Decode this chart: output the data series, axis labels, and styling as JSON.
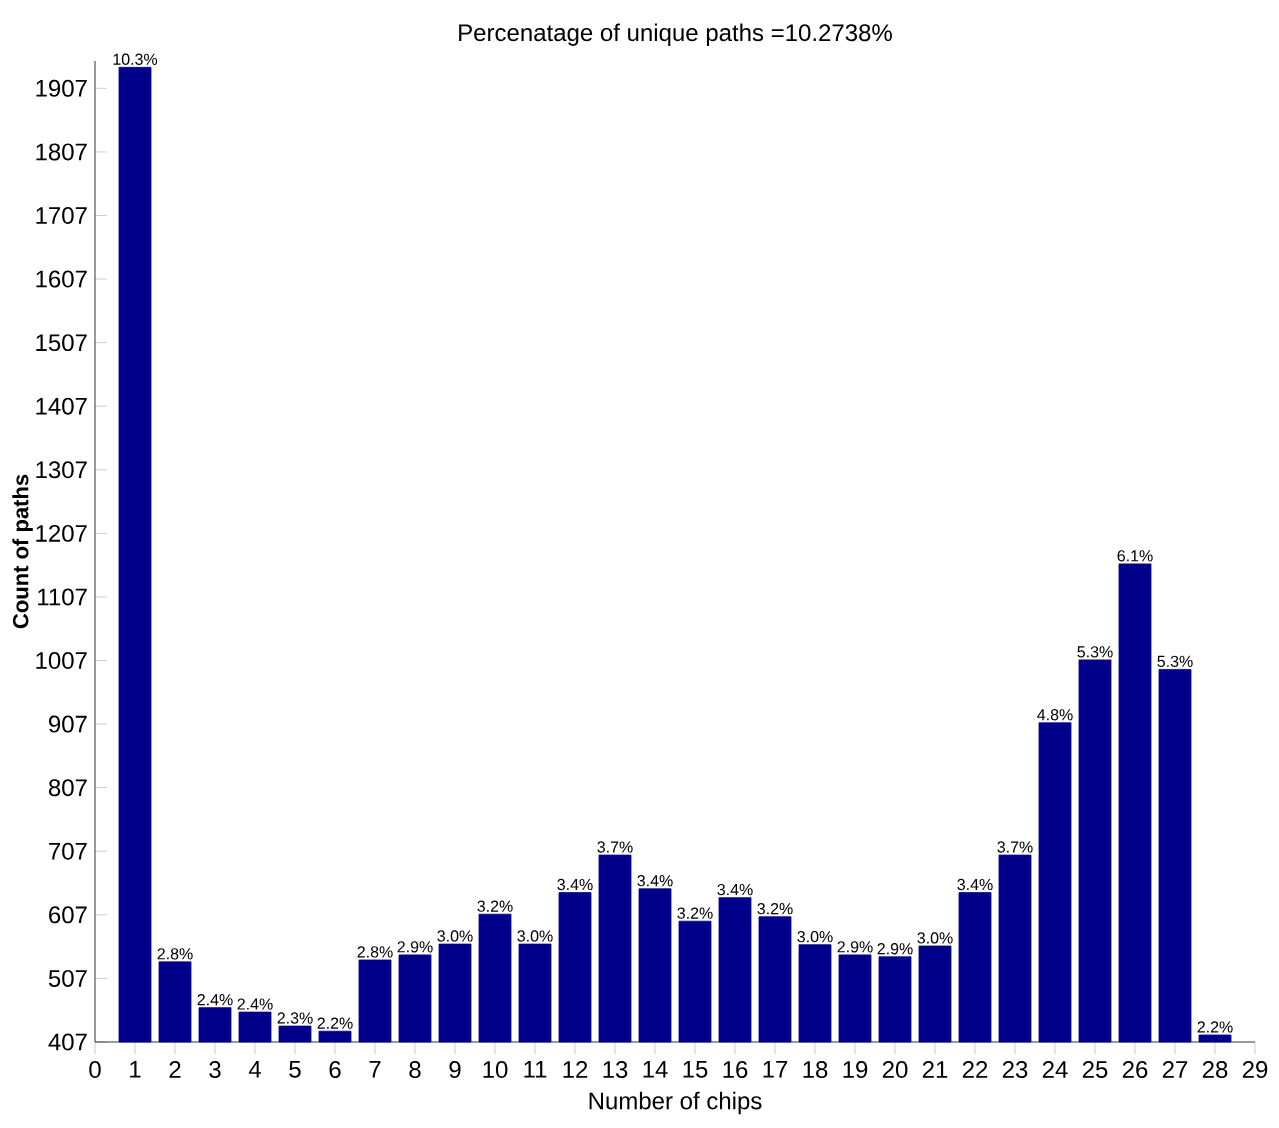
{
  "chart_data": {
    "type": "bar",
    "title": "Percenatage of unique paths =10.2738%",
    "xlabel": "Number of chips",
    "ylabel": "Count of paths",
    "x": [
      1,
      2,
      3,
      4,
      5,
      6,
      7,
      8,
      9,
      10,
      11,
      12,
      13,
      14,
      15,
      16,
      17,
      18,
      19,
      20,
      21,
      22,
      23,
      24,
      25,
      26,
      27,
      28
    ],
    "values": [
      1940,
      533,
      461,
      454,
      432,
      424,
      536,
      544,
      561,
      608,
      561,
      642,
      701,
      648,
      597,
      634,
      604,
      560,
      544,
      541,
      558,
      642,
      701,
      909,
      1008,
      1159,
      993,
      418
    ],
    "annotations": [
      {
        "text": "10.3%",
        "x": 1,
        "y": 1940
      },
      {
        "text": "2.8%",
        "x": 2,
        "y": 533
      },
      {
        "text": "2.4%",
        "x": 3,
        "y": 461
      },
      {
        "text": "2.4%",
        "x": 4,
        "y": 454
      },
      {
        "text": "2.3%",
        "x": 5,
        "y": 432
      },
      {
        "text": "2.2%",
        "x": 6,
        "y": 424
      },
      {
        "text": "2.8%",
        "x": 7,
        "y": 536
      },
      {
        "text": "2.9%",
        "x": 8,
        "y": 544
      },
      {
        "text": "3.0%",
        "x": 9,
        "y": 561
      },
      {
        "text": "3.2%",
        "x": 10,
        "y": 608
      },
      {
        "text": "3.0%",
        "x": 11,
        "y": 561
      },
      {
        "text": "3.4%",
        "x": 12,
        "y": 642
      },
      {
        "text": "3.7%",
        "x": 13,
        "y": 701
      },
      {
        "text": "3.4%",
        "x": 14,
        "y": 648
      },
      {
        "text": "3.2%",
        "x": 15,
        "y": 597
      },
      {
        "text": "3.4%",
        "x": 16,
        "y": 634
      },
      {
        "text": "3.2%",
        "x": 17,
        "y": 604
      },
      {
        "text": "3.0%",
        "x": 18,
        "y": 560
      },
      {
        "text": "2.9%",
        "x": 19,
        "y": 544
      },
      {
        "text": "2.9%",
        "x": 20,
        "y": 541
      },
      {
        "text": "3.0%",
        "x": 21,
        "y": 558
      },
      {
        "text": "3.4%",
        "x": 22,
        "y": 642
      },
      {
        "text": "3.7%",
        "x": 23,
        "y": 701
      },
      {
        "text": "4.8%",
        "x": 24,
        "y": 909
      },
      {
        "text": "5.3%",
        "x": 25,
        "y": 1008
      },
      {
        "text": "6.1%",
        "x": 26,
        "y": 1159
      },
      {
        "text": "5.3%",
        "x": 27,
        "y": 993
      },
      {
        "text": "2.2%",
        "x": 28,
        "y": 418
      }
    ],
    "color": "#00008b",
    "xlim": [
      0,
      29
    ],
    "xticks": [
      0,
      1,
      2,
      3,
      4,
      5,
      6,
      7,
      8,
      9,
      10,
      11,
      12,
      13,
      14,
      15,
      16,
      17,
      18,
      19,
      20,
      21,
      22,
      23,
      24,
      25,
      26,
      27,
      28,
      29
    ],
    "ylim": [
      407,
      1950
    ],
    "yticks": [
      407,
      507,
      607,
      707,
      807,
      907,
      1007,
      1107,
      1207,
      1307,
      1407,
      1507,
      1607,
      1707,
      1807,
      1907
    ]
  }
}
